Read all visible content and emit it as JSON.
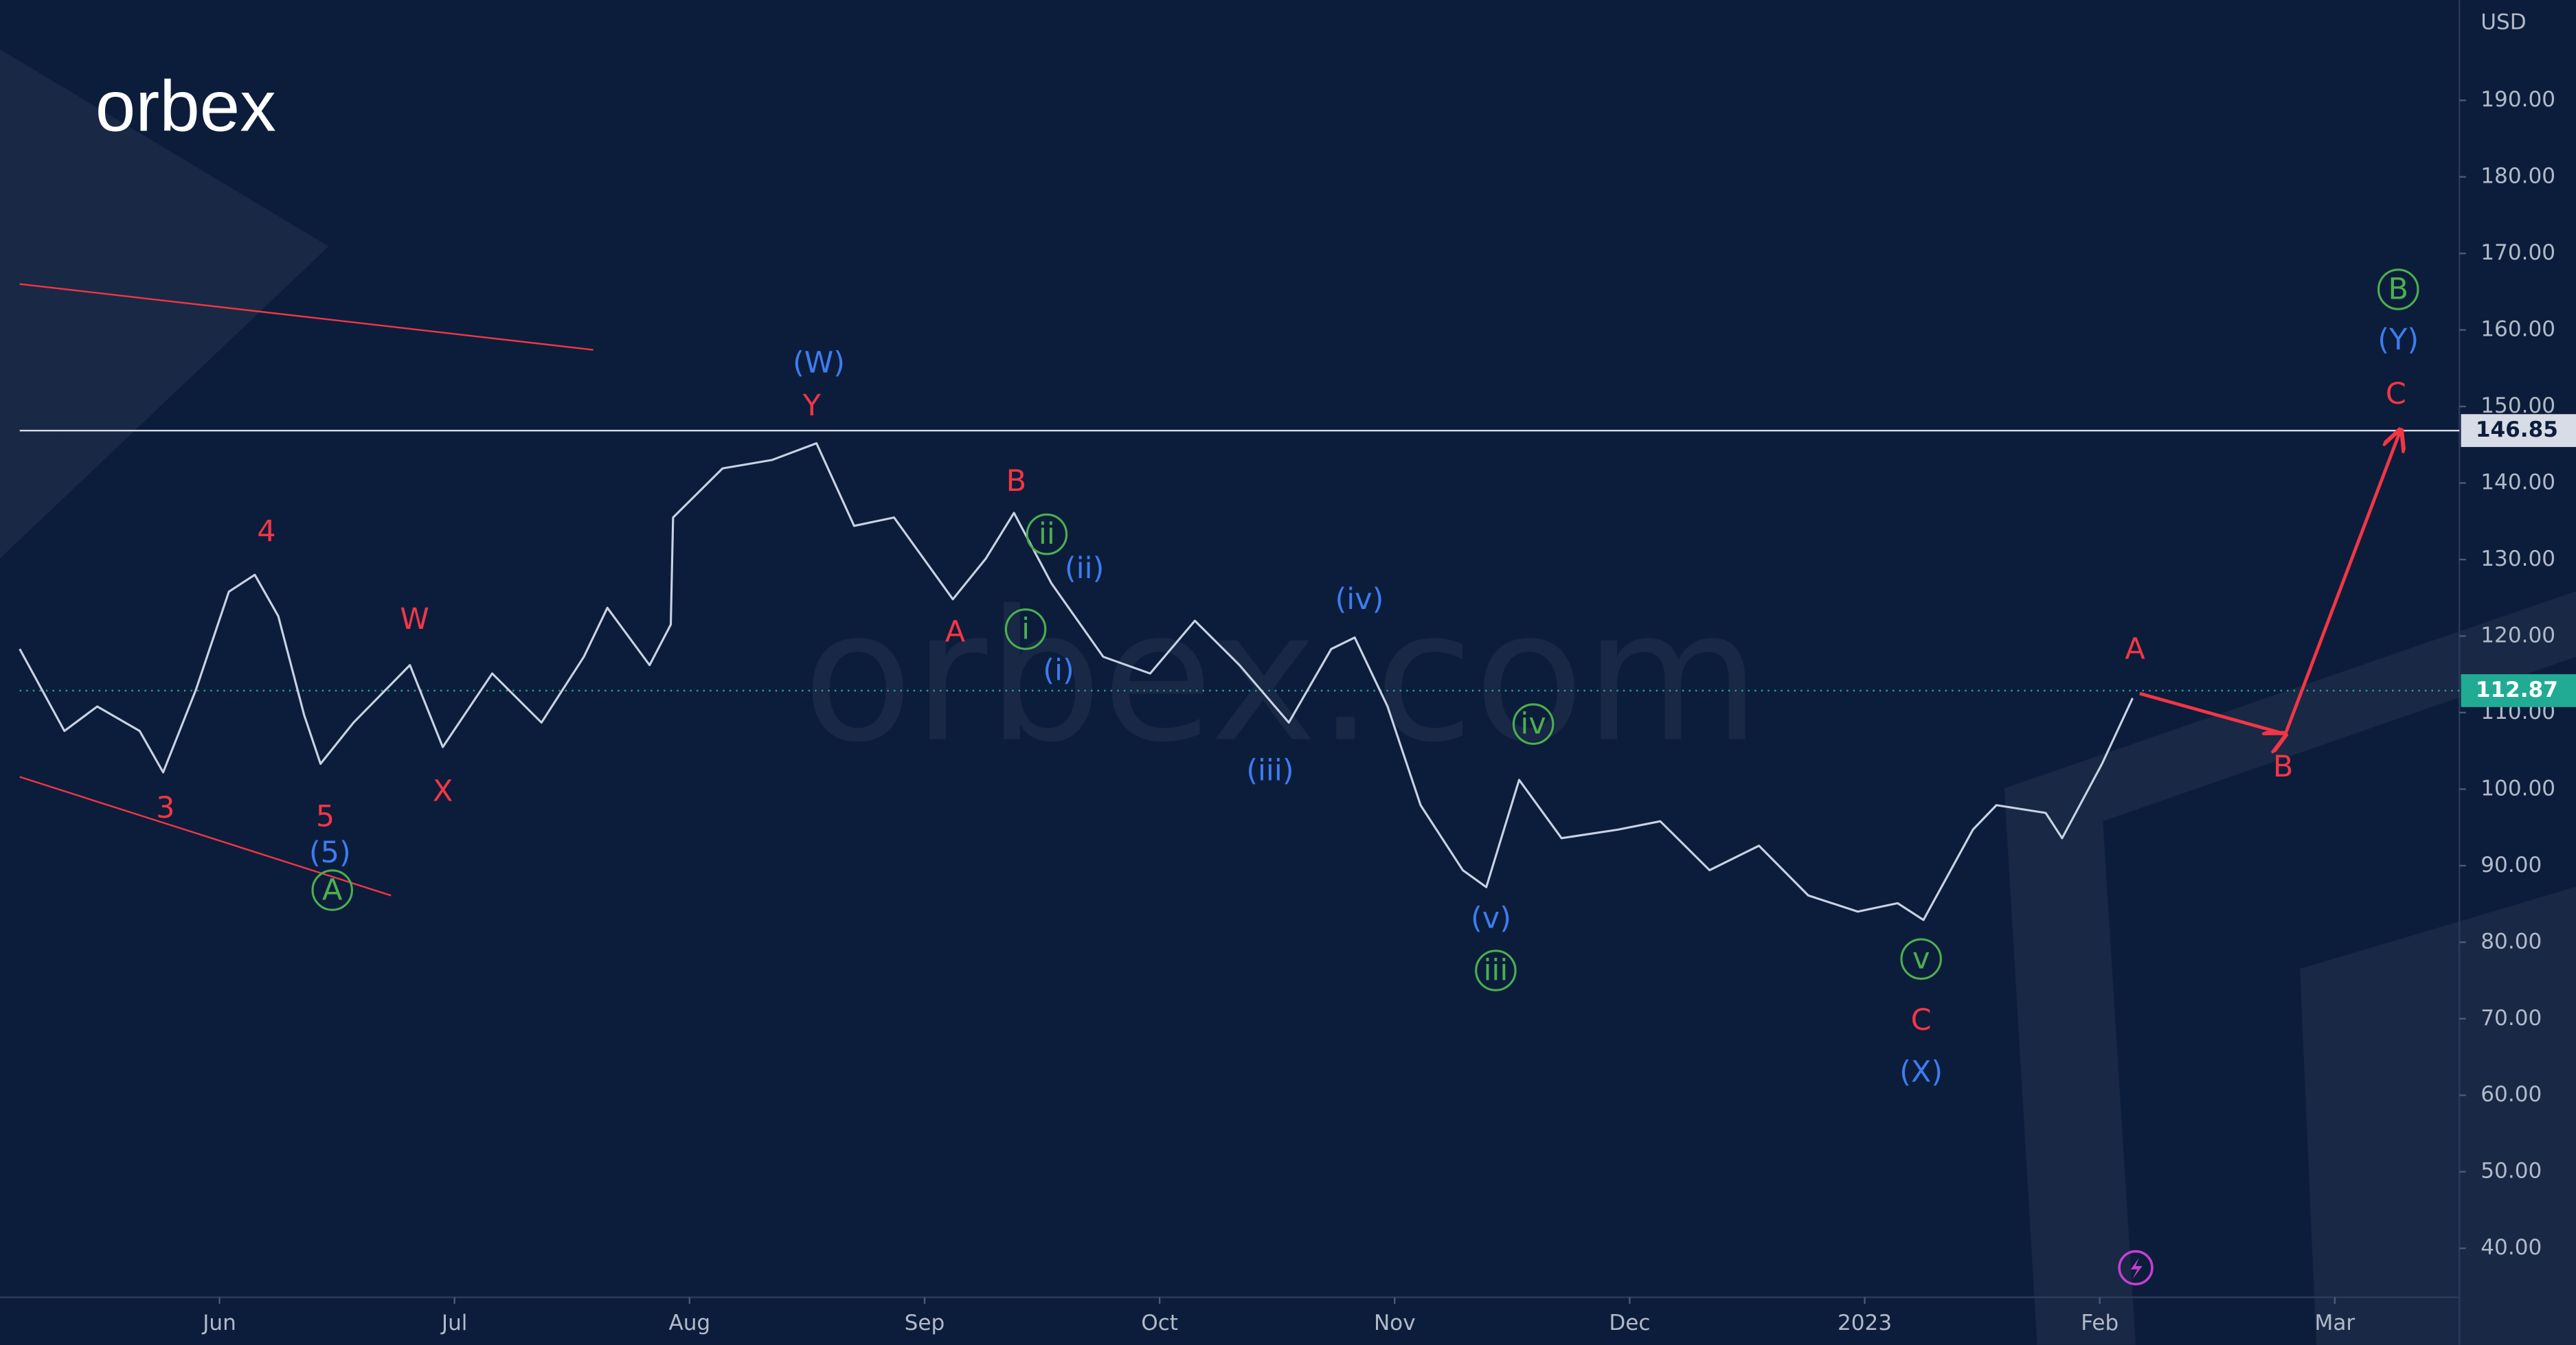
{
  "logo": "orbex",
  "watermark": "orbex.com",
  "chart_data": {
    "type": "line",
    "currency": "USD",
    "xlim": [
      0.15,
      10.53
    ],
    "ylim": [
      33.6,
      203.1
    ],
    "xticks": [
      {
        "value": 1,
        "label": "Jun"
      },
      {
        "value": 2,
        "label": "Jul"
      },
      {
        "value": 3,
        "label": "Aug"
      },
      {
        "value": 4,
        "label": "Sep"
      },
      {
        "value": 5,
        "label": "Oct"
      },
      {
        "value": 6,
        "label": "Nov"
      },
      {
        "value": 7,
        "label": "Dec"
      },
      {
        "value": 8,
        "label": "2023"
      },
      {
        "value": 9,
        "label": "Feb"
      },
      {
        "value": 10,
        "label": "Mar"
      }
    ],
    "yticks": [
      {
        "value": 40,
        "label": "40.00"
      },
      {
        "value": 50,
        "label": "50.00"
      },
      {
        "value": 60,
        "label": "60.00"
      },
      {
        "value": 70,
        "label": "70.00"
      },
      {
        "value": 80,
        "label": "80.00"
      },
      {
        "value": 90,
        "label": "90.00"
      },
      {
        "value": 100,
        "label": "100.00"
      },
      {
        "value": 110,
        "label": "110.00"
      },
      {
        "value": 120,
        "label": "120.00"
      },
      {
        "value": 130,
        "label": "130.00"
      },
      {
        "value": 140,
        "label": "140.00"
      },
      {
        "value": 150,
        "label": "150.00"
      },
      {
        "value": 160,
        "label": "160.00"
      },
      {
        "value": 170,
        "label": "170.00"
      },
      {
        "value": 180,
        "label": "180.00"
      },
      {
        "value": 190,
        "label": "190.00"
      }
    ],
    "x": [
      0.15,
      0.34,
      0.48,
      0.66,
      0.76,
      0.9,
      1.04,
      1.15,
      1.25,
      1.36,
      1.43,
      1.57,
      1.81,
      1.95,
      2.16,
      2.37,
      2.55,
      2.65,
      2.83,
      2.92,
      2.93,
      3.14,
      3.35,
      3.54,
      3.7,
      3.87,
      4.12,
      4.26,
      4.38,
      4.54,
      4.76,
      4.96,
      5.15,
      5.34,
      5.55,
      5.73,
      5.83,
      5.97,
      6.11,
      6.29,
      6.39,
      6.53,
      6.71,
      6.95,
      7.13,
      7.34,
      7.55,
      7.76,
      7.97,
      8.14,
      8.25,
      8.46,
      8.56,
      8.77,
      8.84,
      9.01,
      9.14
    ],
    "series": [
      {
        "color": "#c9d2e3",
        "values": [
          118.3,
          107.6,
          110.8,
          107.6,
          102.2,
          113.0,
          125.8,
          128.0,
          122.6,
          109.7,
          103.3,
          108.7,
          116.2,
          105.5,
          115.1,
          108.7,
          117.3,
          123.7,
          116.2,
          121.5,
          135.5,
          141.9,
          143.0,
          145.2,
          134.4,
          135.5,
          124.8,
          130.1,
          136.1,
          126.9,
          117.3,
          115.1,
          122.0,
          116.2,
          108.7,
          118.3,
          119.8,
          110.8,
          97.9,
          89.4,
          87.2,
          101.2,
          93.6,
          94.7,
          95.8,
          89.4,
          92.6,
          86.1,
          84.0,
          85.1,
          82.9,
          94.7,
          97.9,
          96.9,
          93.6,
          103.3,
          111.9
        ]
      },
      {
        "color": "#f23645",
        "x": [
          9.17,
          9.79,
          10.28
        ],
        "values": [
          112.5,
          107.2,
          146.9
        ],
        "arrow": true
      }
    ],
    "trendlines": [
      {
        "color": "#f23645",
        "x": [
          0.15,
          2.59
        ],
        "values": [
          166.0,
          157.4
        ]
      },
      {
        "color": "#f23645",
        "x": [
          0.15,
          1.73
        ],
        "values": [
          101.6,
          86.1
        ]
      }
    ],
    "level_line": 146.85,
    "last_price": 112.87,
    "last_price_color": "#22ab94",
    "annotations": [
      {
        "text": "4",
        "x": 1.2,
        "y": 133.6,
        "color": "#f23645"
      },
      {
        "text": "3",
        "x": 0.77,
        "y": 97.5,
        "color": "#f23645"
      },
      {
        "text": "5",
        "x": 1.45,
        "y": 96.4,
        "color": "#f23645"
      },
      {
        "text": "W",
        "x": 1.83,
        "y": 122.2,
        "color": "#f23645"
      },
      {
        "text": "X",
        "x": 1.95,
        "y": 99.7,
        "color": "#f23645"
      },
      {
        "text": "Y",
        "x": 3.52,
        "y": 150.1,
        "color": "#f23645"
      },
      {
        "text": "B",
        "x": 4.39,
        "y": 140.2,
        "color": "#f23645"
      },
      {
        "text": "A",
        "x": 4.13,
        "y": 120.5,
        "color": "#f23645"
      },
      {
        "text": "A",
        "x": 9.15,
        "y": 118.3,
        "color": "#f23645"
      },
      {
        "text": "B",
        "x": 9.78,
        "y": 102.9,
        "color": "#f23645"
      },
      {
        "text": "C",
        "x": 10.26,
        "y": 151.6,
        "color": "#f23645"
      },
      {
        "text": "C",
        "x": 8.24,
        "y": 69.8,
        "color": "#f23645"
      },
      {
        "text": "(5)",
        "x": 1.47,
        "y": 91.7,
        "color": "#3d7cf0"
      },
      {
        "text": "(W)",
        "x": 3.55,
        "y": 155.7,
        "color": "#3d7cf0"
      },
      {
        "text": "(ii)",
        "x": 4.68,
        "y": 128.8,
        "color": "#3d7cf0"
      },
      {
        "text": "(i)",
        "x": 4.57,
        "y": 115.5,
        "color": "#3d7cf0"
      },
      {
        "text": "(iv)",
        "x": 5.85,
        "y": 124.8,
        "color": "#3d7cf0"
      },
      {
        "text": "(iii)",
        "x": 5.47,
        "y": 102.4,
        "color": "#3d7cf0"
      },
      {
        "text": "(v)",
        "x": 6.41,
        "y": 83.1,
        "color": "#3d7cf0"
      },
      {
        "text": "(X)",
        "x": 8.24,
        "y": 63.0,
        "color": "#3d7cf0"
      },
      {
        "text": "(Y)",
        "x": 10.27,
        "y": 158.7,
        "color": "#3d7cf0"
      },
      {
        "text": "A",
        "x": 1.48,
        "y": 86.8,
        "color": "#4caf50",
        "circled": true
      },
      {
        "text": "ii",
        "x": 4.52,
        "y": 133.3,
        "color": "#4caf50",
        "circled": true
      },
      {
        "text": "i",
        "x": 4.43,
        "y": 120.9,
        "color": "#4caf50",
        "circled": true
      },
      {
        "text": "iv",
        "x": 6.59,
        "y": 108.5,
        "color": "#4caf50",
        "circled": true
      },
      {
        "text": "iii",
        "x": 6.43,
        "y": 76.3,
        "color": "#4caf50",
        "circled": true
      },
      {
        "text": "v",
        "x": 8.24,
        "y": 77.8,
        "color": "#4caf50",
        "circled": true
      },
      {
        "text": "B",
        "x": 10.27,
        "y": 165.3,
        "color": "#4caf50",
        "circled": true
      }
    ]
  }
}
